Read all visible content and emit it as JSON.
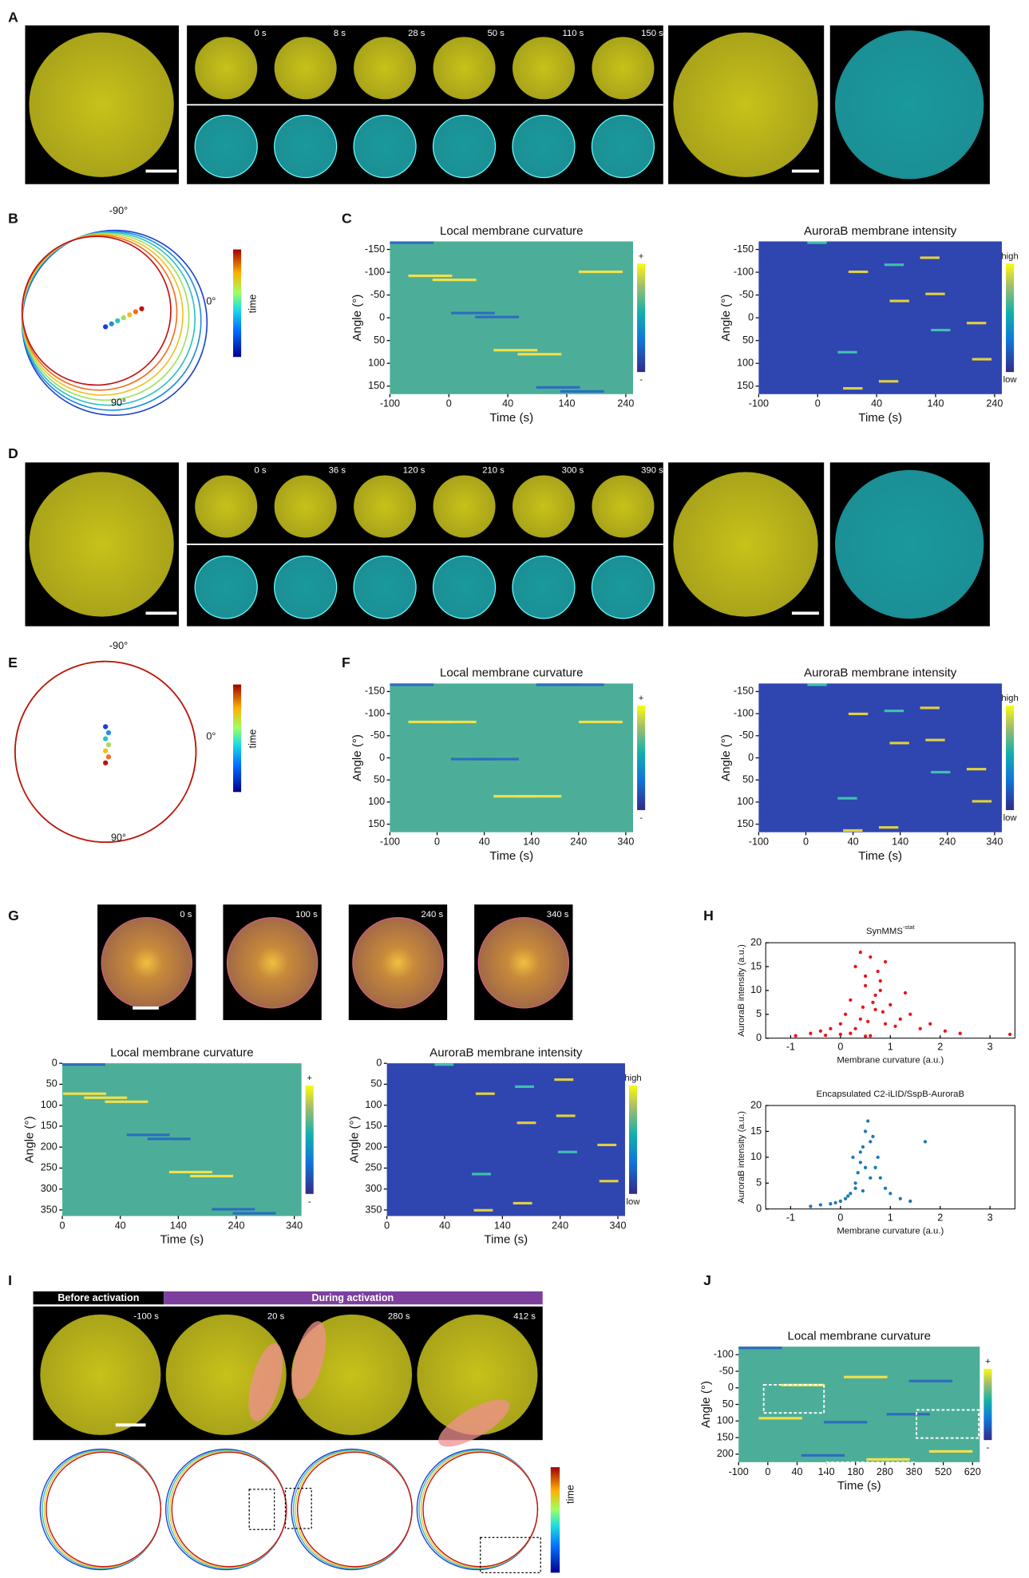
{
  "panels": {
    "A": {
      "label": "A",
      "times": [
        "0 s",
        "8 s",
        "28 s",
        "50 s",
        "110 s",
        "150 s"
      ]
    },
    "B": {
      "label": "B",
      "angles": [
        "-90°",
        "0°",
        "90°"
      ],
      "colorbar": "time"
    },
    "C": {
      "label": "C",
      "curvature": {
        "title": "Local membrane curvature",
        "ylabel": "Angle (°)",
        "xlabel": "Time (s)",
        "yticks": [
          "-150",
          "-100",
          "-50",
          "0",
          "50",
          "100",
          "150"
        ],
        "xticks": [
          "-100",
          "0",
          "40",
          "140",
          "240"
        ],
        "cbar": [
          "+",
          "-"
        ]
      },
      "intensity": {
        "title": "AuroraB membrane intensity",
        "ylabel": "Angle (°)",
        "xlabel": "Time (s)",
        "yticks": [
          "-150",
          "-100",
          "-50",
          "0",
          "50",
          "100",
          "150"
        ],
        "xticks": [
          "-100",
          "0",
          "40",
          "140",
          "240"
        ],
        "cbar": [
          "high",
          "low"
        ]
      }
    },
    "D": {
      "label": "D",
      "times": [
        "0 s",
        "36 s",
        "120 s",
        "210 s",
        "300 s",
        "390 s"
      ]
    },
    "E": {
      "label": "E",
      "angles": [
        "-90°",
        "0°",
        "90°"
      ],
      "colorbar": "time"
    },
    "F": {
      "label": "F",
      "curvature": {
        "title": "Local membrane curvature",
        "ylabel": "Angle (°)",
        "xlabel": "Time (s)",
        "yticks": [
          "-150",
          "-100",
          "-50",
          "0",
          "50",
          "100",
          "150"
        ],
        "xticks": [
          "-100",
          "0",
          "40",
          "140",
          "240",
          "340"
        ],
        "cbar": [
          "+",
          "-"
        ]
      },
      "intensity": {
        "title": "AuroraB membrane intensity",
        "ylabel": "Angle (°)",
        "xlabel": "Time (s)",
        "yticks": [
          "-150",
          "-100",
          "-50",
          "0",
          "50",
          "100",
          "150"
        ],
        "xticks": [
          "-100",
          "0",
          "40",
          "140",
          "240",
          "340"
        ],
        "cbar": [
          "high",
          "low"
        ]
      }
    },
    "G": {
      "label": "G",
      "times": [
        "0 s",
        "100 s",
        "240 s",
        "340 s"
      ],
      "curvature": {
        "title": "Local membrane curvature",
        "ylabel": "Angle (°)",
        "xlabel": "Time (s)",
        "yticks": [
          "0",
          "50",
          "100",
          "150",
          "200",
          "250",
          "300",
          "350"
        ],
        "xticks": [
          "0",
          "40",
          "140",
          "240",
          "340"
        ],
        "cbar": [
          "+",
          "-"
        ]
      },
      "intensity": {
        "title": "AuroraB membrane intensity",
        "ylabel": "Angle (°)",
        "xlabel": "Time (s)",
        "yticks": [
          "0",
          "50",
          "100",
          "150",
          "200",
          "250",
          "300",
          "350"
        ],
        "xticks": [
          "0",
          "40",
          "140",
          "240",
          "340"
        ],
        "cbar": [
          "high",
          "low"
        ]
      }
    },
    "H": {
      "label": "H",
      "scatter1": {
        "type": "scatter",
        "title": "SynMMS",
        "title_superscript": "-stat",
        "ylabel": "AuroraB intensity (a.u.)",
        "xlabel": "Membrane curvature (a.u.)",
        "color": "#e8141b",
        "xlim": [
          -1.5,
          3.5
        ],
        "ylim": [
          0,
          20
        ],
        "xticks": [
          -1,
          0,
          1,
          2,
          3
        ],
        "yticks": [
          0,
          5,
          10,
          15,
          20
        ],
        "x": [
          -0.9,
          -0.6,
          -0.4,
          -0.2,
          0,
          0.1,
          0.2,
          0.3,
          0.4,
          0.5,
          0.6,
          0.7,
          0.8,
          0.9,
          1.0,
          1.2,
          1.4,
          1.6,
          1.8,
          2.1,
          2.4,
          3.4,
          0.3,
          0.5,
          0.7,
          0.2,
          0.9,
          0.6,
          0.4,
          0.8,
          1.1,
          0.0,
          -0.3,
          0.5,
          0.65,
          0.85,
          1.3,
          0.45,
          0.75,
          0.55
        ],
        "y": [
          0.5,
          1,
          1.5,
          2,
          3,
          5,
          8,
          2,
          4,
          13,
          17,
          6,
          10,
          3,
          7,
          4,
          5,
          2,
          3,
          1.5,
          1,
          0.8,
          15,
          11,
          9,
          1,
          16,
          0.5,
          18,
          12,
          2.5,
          0.8,
          0.6,
          0.4,
          7.5,
          5.5,
          9.5,
          6.5,
          14,
          3.5
        ]
      },
      "scatter2": {
        "type": "scatter",
        "title": "Encapsulated C2-iLID/SspB-AuroraB",
        "ylabel": "AuroraB intensity (a.u.)",
        "xlabel": "Membrane curvature (a.u.)",
        "color": "#1f77b4",
        "xlim": [
          -1.5,
          3.5
        ],
        "ylim": [
          0,
          20
        ],
        "xticks": [
          -1,
          0,
          1,
          2,
          3
        ],
        "yticks": [
          0,
          5,
          10,
          15,
          20
        ],
        "x": [
          -0.6,
          -0.4,
          -0.2,
          0,
          0.1,
          0.2,
          0.3,
          0.35,
          0.4,
          0.45,
          0.5,
          0.55,
          0.6,
          0.7,
          0.8,
          0.9,
          1.0,
          1.2,
          1.4,
          1.7,
          0.25,
          0.4,
          0.5,
          0.6,
          0.3,
          0.45,
          0.15,
          -0.1,
          0.65,
          0.75
        ],
        "y": [
          0.5,
          0.8,
          1,
          1.5,
          2,
          3,
          5,
          7,
          9,
          12,
          15,
          17,
          13,
          8,
          6,
          4,
          3,
          2,
          1.5,
          13,
          10,
          11,
          8,
          6,
          4,
          3.5,
          2.5,
          1.2,
          14,
          10
        ]
      }
    },
    "I": {
      "label": "I",
      "before": "Before activation",
      "during": "During activation",
      "times": [
        "-100 s",
        "20 s",
        "280 s",
        "412 s"
      ],
      "colorbar": "time"
    },
    "J": {
      "label": "J",
      "curvature": {
        "title": "Local membrane curvature",
        "ylabel": "Angle (°)",
        "xlabel": "Time (s)",
        "yticks": [
          "-100",
          "-50",
          "0",
          "50",
          "100",
          "150",
          "200"
        ],
        "xticks": [
          "-100",
          "0",
          "40",
          "140",
          "180",
          "280",
          "380",
          "520",
          "620"
        ],
        "cbar": [
          "+",
          "-"
        ]
      }
    }
  }
}
